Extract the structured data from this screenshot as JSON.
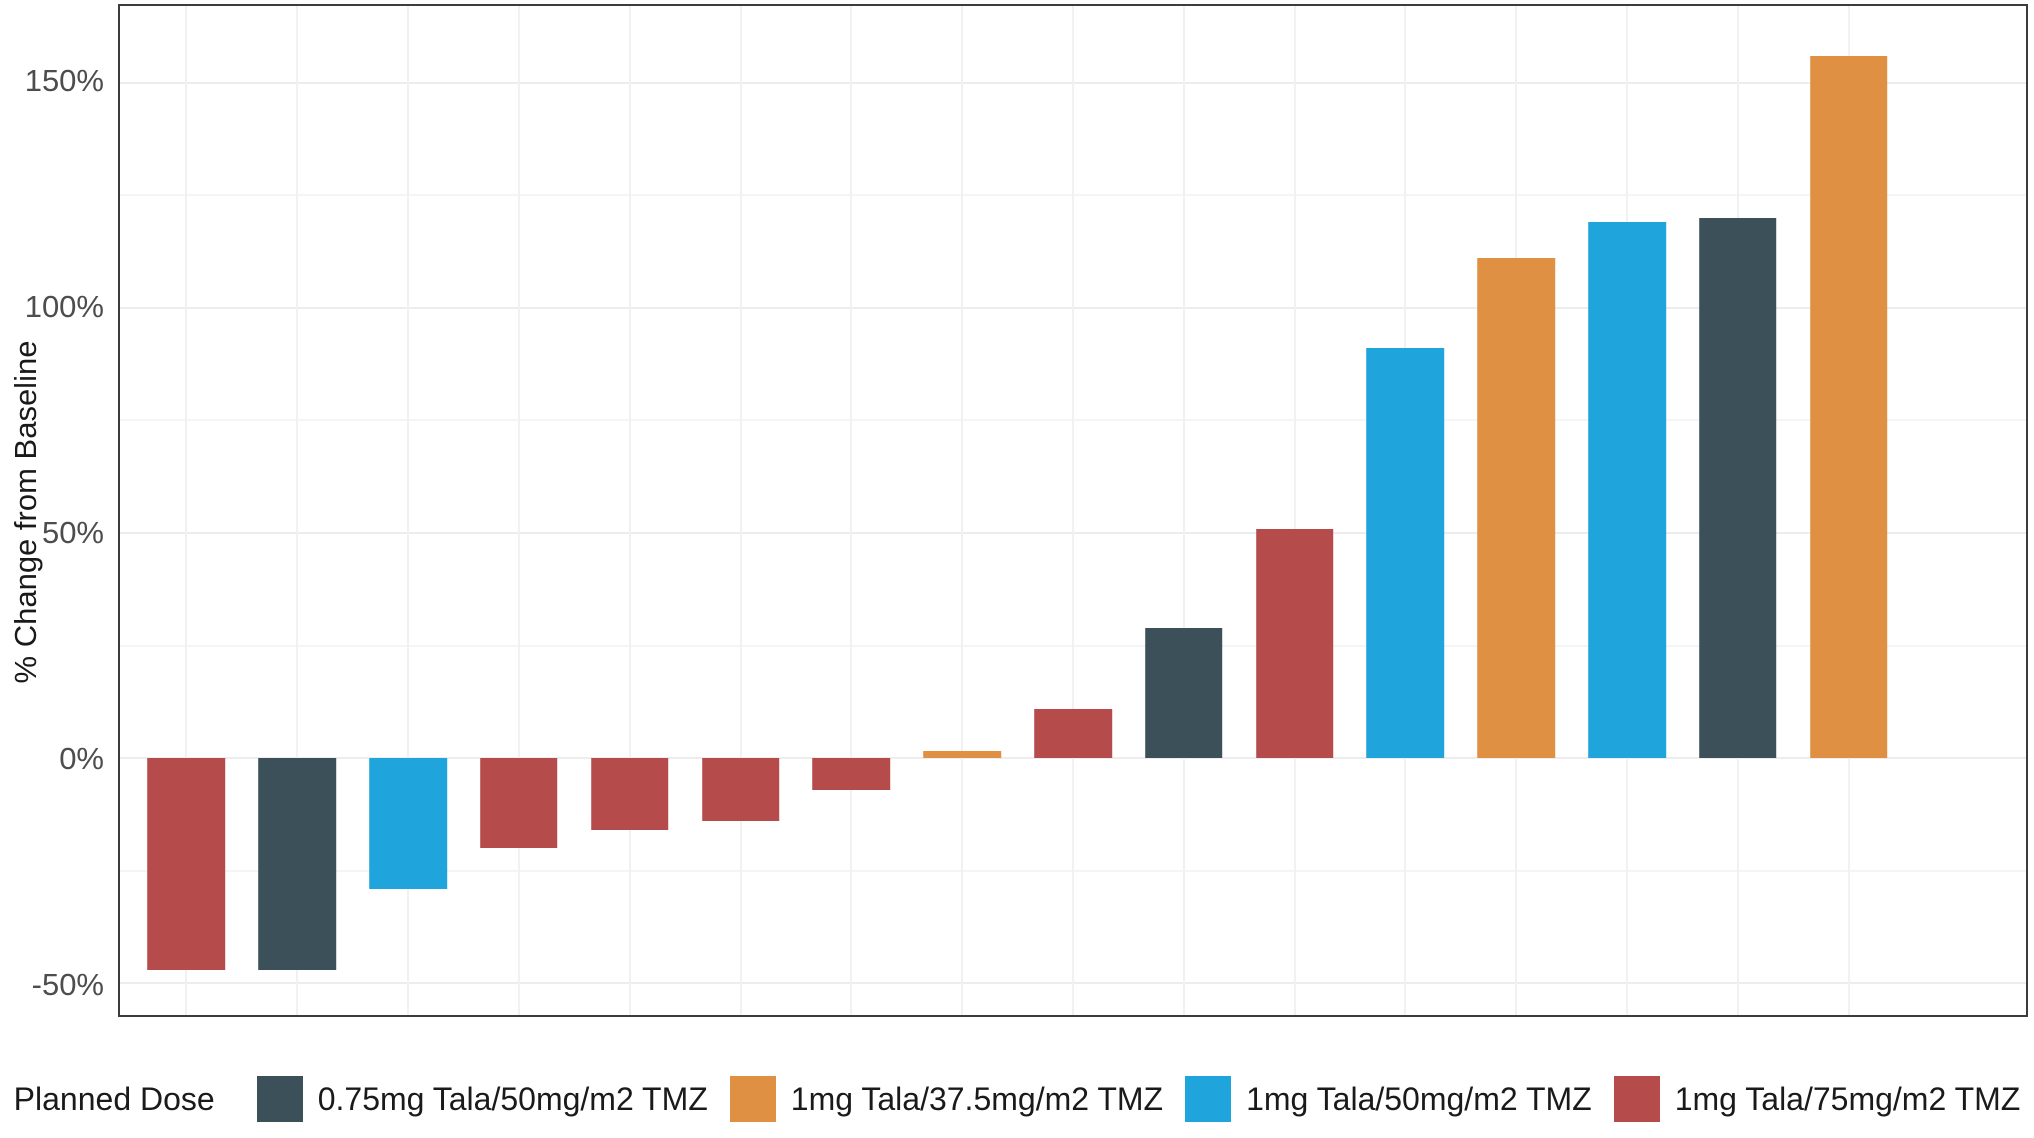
{
  "chart_data": {
    "type": "bar",
    "title": "",
    "xlabel": "",
    "ylabel": "% Change from Baseline",
    "ylim": [
      -57,
      167
    ],
    "grid": true,
    "legend_position": "bottom",
    "legend_title": "Planned Dose",
    "yticks_major": [
      {
        "value": 150,
        "label": "150%"
      },
      {
        "value": 100,
        "label": "100%"
      },
      {
        "value": 50,
        "label": "50%"
      },
      {
        "value": 0,
        "label": "0%"
      },
      {
        "value": -50,
        "label": "-50%"
      }
    ],
    "yticks_minor": [
      -25,
      25,
      75,
      125
    ],
    "groups": [
      {
        "label": "0.75mg Tala/50mg/m2 TMZ",
        "color": "#3b5059"
      },
      {
        "label": "1mg Tala/37.5mg/m2 TMZ",
        "color": "#df9043"
      },
      {
        "label": "1mg Tala/50mg/m2 TMZ",
        "color": "#1fa5db"
      },
      {
        "label": "1mg Tala/75mg/m2 TMZ",
        "color": "#b54b4a"
      }
    ],
    "bars": [
      {
        "value": -47,
        "group": "1mg Tala/75mg/m2 TMZ"
      },
      {
        "value": -47,
        "group": "0.75mg Tala/50mg/m2 TMZ"
      },
      {
        "value": -29,
        "group": "1mg Tala/50mg/m2 TMZ"
      },
      {
        "value": -20,
        "group": "1mg Tala/75mg/m2 TMZ"
      },
      {
        "value": -16,
        "group": "1mg Tala/75mg/m2 TMZ"
      },
      {
        "value": -14,
        "group": "1mg Tala/75mg/m2 TMZ"
      },
      {
        "value": -7,
        "group": "1mg Tala/75mg/m2 TMZ"
      },
      {
        "value": 1.5,
        "group": "1mg Tala/37.5mg/m2 TMZ"
      },
      {
        "value": 11,
        "group": "1mg Tala/75mg/m2 TMZ"
      },
      {
        "value": 29,
        "group": "0.75mg Tala/50mg/m2 TMZ"
      },
      {
        "value": 51,
        "group": "1mg Tala/75mg/m2 TMZ"
      },
      {
        "value": 91,
        "group": "1mg Tala/50mg/m2 TMZ"
      },
      {
        "value": 111,
        "group": "1mg Tala/37.5mg/m2 TMZ"
      },
      {
        "value": 119,
        "group": "1mg Tala/50mg/m2 TMZ"
      },
      {
        "value": 120,
        "group": "0.75mg Tala/50mg/m2 TMZ"
      },
      {
        "value": 156,
        "group": "1mg Tala/37.5mg/m2 TMZ"
      }
    ],
    "bar_slot_expand": 0.6,
    "bar_width_fraction": 0.7
  }
}
